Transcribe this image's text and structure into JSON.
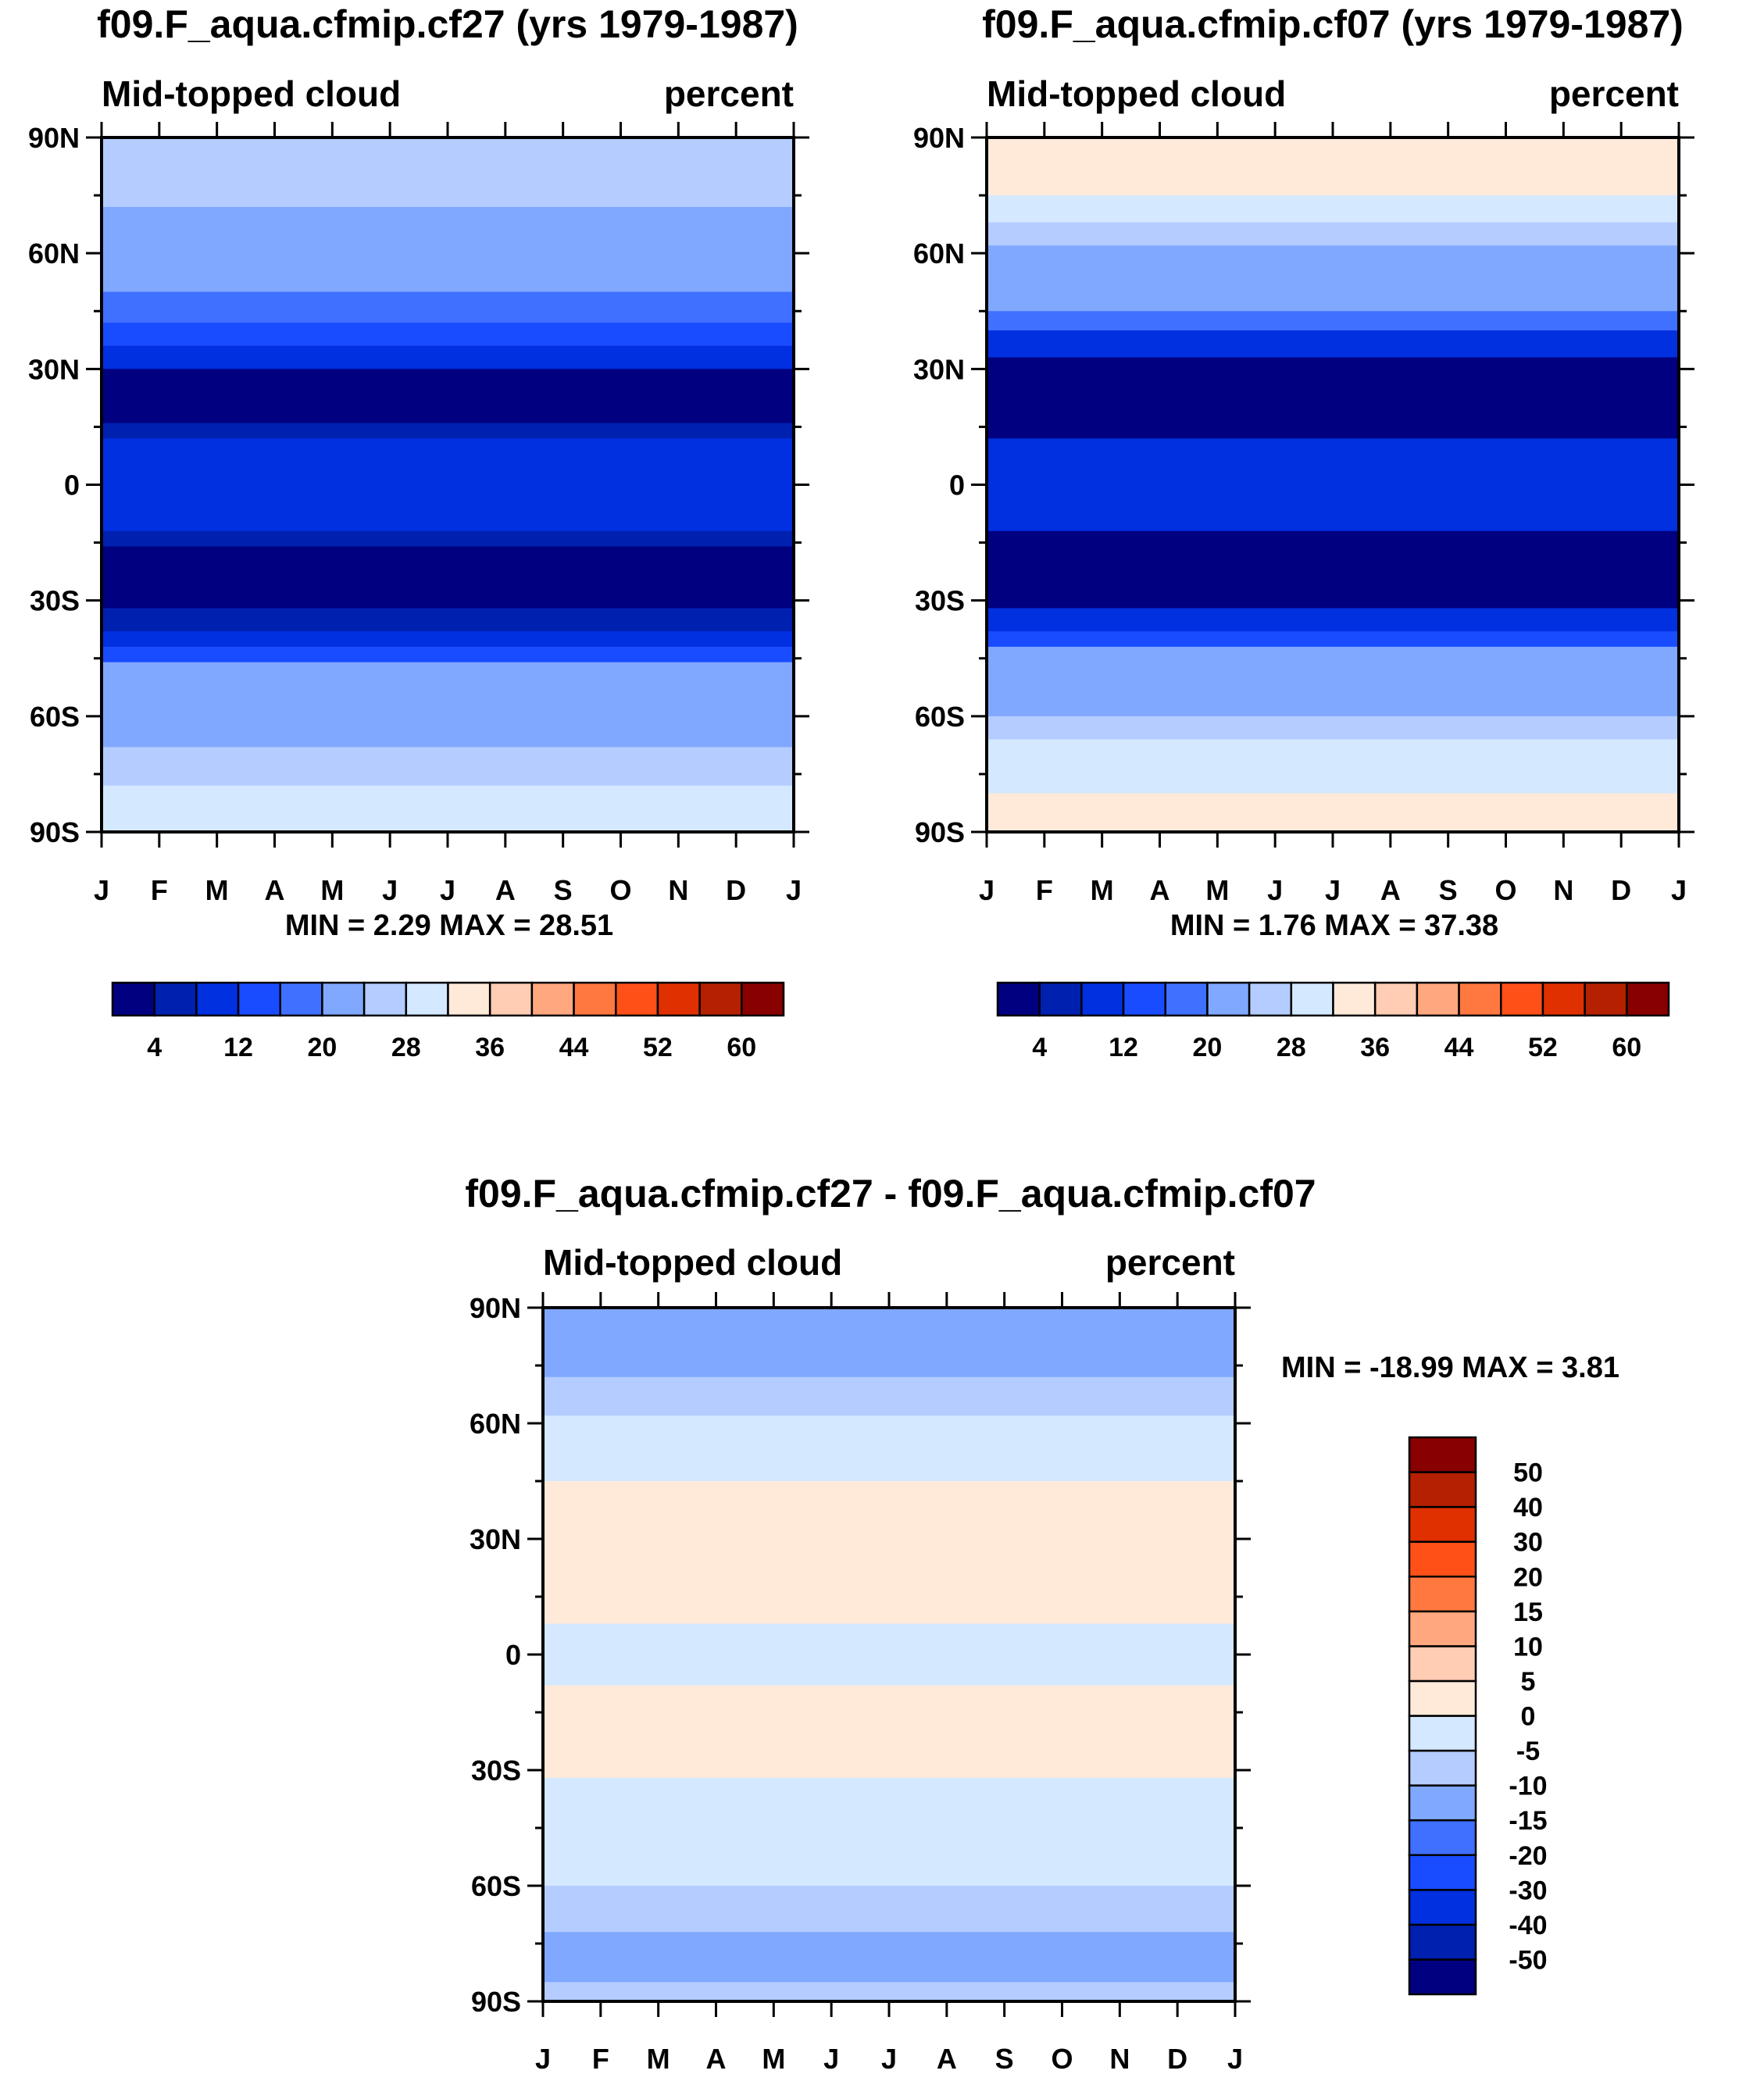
{
  "colors": [
    "#000080",
    "#0020b0",
    "#0030e0",
    "#1a4cff",
    "#4070ff",
    "#80a8ff",
    "#b4ccff",
    "#d4e8ff",
    "#ffeada",
    "#ffccb4",
    "#ffa880",
    "#ff7840",
    "#ff5018",
    "#e03000",
    "#b42000",
    "#880000"
  ],
  "chart_data": [
    {
      "type": "heatmap",
      "title": "f09.F_aqua.cfmip.cf27 (yrs 1979-1987)",
      "left_label": "Mid-topped cloud",
      "right_label": "percent",
      "stats": "MIN =   2.29 MAX =  28.51",
      "x_ticks": [
        "J",
        "F",
        "M",
        "A",
        "M",
        "J",
        "J",
        "A",
        "S",
        "O",
        "N",
        "D",
        "J"
      ],
      "y_ticks": [
        "90N",
        "60N",
        "30N",
        "0",
        "30S",
        "60S",
        "90S"
      ],
      "levels": [
        4,
        8,
        12,
        16,
        20,
        24,
        28,
        32,
        36,
        40,
        44,
        48,
        52,
        56,
        60
      ],
      "colorbar_labels": [
        "4",
        "12",
        "20",
        "28",
        "36",
        "44",
        "52",
        "60"
      ],
      "zonal_bands": [
        [
          90,
          72,
          26
        ],
        [
          72,
          50,
          22
        ],
        [
          50,
          42,
          18
        ],
        [
          42,
          36,
          14
        ],
        [
          36,
          30,
          10
        ],
        [
          30,
          16,
          2
        ],
        [
          16,
          12,
          6
        ],
        [
          12,
          -12,
          10
        ],
        [
          -12,
          -16,
          6
        ],
        [
          -16,
          -32,
          2
        ],
        [
          -32,
          -38,
          6
        ],
        [
          -38,
          -42,
          10
        ],
        [
          -42,
          -46,
          14
        ],
        [
          -46,
          -68,
          22
        ],
        [
          -68,
          -78,
          26
        ],
        [
          -78,
          -90,
          30
        ]
      ]
    },
    {
      "type": "heatmap",
      "title": "f09.F_aqua.cfmip.cf07 (yrs 1979-1987)",
      "left_label": "Mid-topped cloud",
      "right_label": "percent",
      "stats": "MIN =   1.76 MAX =  37.38",
      "x_ticks": [
        "J",
        "F",
        "M",
        "A",
        "M",
        "J",
        "J",
        "A",
        "S",
        "O",
        "N",
        "D",
        "J"
      ],
      "y_ticks": [
        "90N",
        "60N",
        "30N",
        "0",
        "30S",
        "60S",
        "90S"
      ],
      "levels": [
        4,
        8,
        12,
        16,
        20,
        24,
        28,
        32,
        36,
        40,
        44,
        48,
        52,
        56,
        60
      ],
      "colorbar_labels": [
        "4",
        "12",
        "20",
        "28",
        "36",
        "44",
        "52",
        "60"
      ],
      "zonal_bands": [
        [
          90,
          75,
          34
        ],
        [
          75,
          68,
          30
        ],
        [
          68,
          62,
          26
        ],
        [
          62,
          45,
          22
        ],
        [
          45,
          40,
          18
        ],
        [
          40,
          33,
          10
        ],
        [
          33,
          12,
          2
        ],
        [
          12,
          -12,
          10
        ],
        [
          -12,
          -32,
          2
        ],
        [
          -32,
          -38,
          8
        ],
        [
          -38,
          -42,
          14
        ],
        [
          -42,
          -60,
          22
        ],
        [
          -60,
          -66,
          26
        ],
        [
          -66,
          -80,
          30
        ],
        [
          -80,
          -90,
          34
        ]
      ]
    },
    {
      "type": "heatmap",
      "title": "f09.F_aqua.cfmip.cf27 - f09.F_aqua.cfmip.cf07",
      "left_label": "Mid-topped cloud",
      "right_label": "percent",
      "stats": "MIN = -18.99 MAX =   3.81",
      "x_ticks": [
        "J",
        "F",
        "M",
        "A",
        "M",
        "J",
        "J",
        "A",
        "S",
        "O",
        "N",
        "D",
        "J"
      ],
      "y_ticks": [
        "90N",
        "60N",
        "30N",
        "0",
        "30S",
        "60S",
        "90S"
      ],
      "levels": [
        -50,
        -40,
        -30,
        -20,
        -15,
        -10,
        -5,
        0,
        5,
        10,
        15,
        20,
        30,
        40,
        50
      ],
      "colorbar_labels": [
        "50",
        "40",
        "30",
        "20",
        "15",
        "10",
        "5",
        "0",
        "-5",
        "-10",
        "-15",
        "-20",
        "-30",
        "-40",
        "-50"
      ],
      "zonal_bands": [
        [
          90,
          72,
          -12
        ],
        [
          72,
          62,
          -7
        ],
        [
          62,
          45,
          -3
        ],
        [
          45,
          8,
          2
        ],
        [
          8,
          -8,
          -2
        ],
        [
          -8,
          -32,
          2
        ],
        [
          -32,
          -60,
          -2
        ],
        [
          -60,
          -72,
          -7
        ],
        [
          -72,
          -85,
          -12
        ],
        [
          -85,
          -90,
          -7
        ]
      ]
    }
  ]
}
